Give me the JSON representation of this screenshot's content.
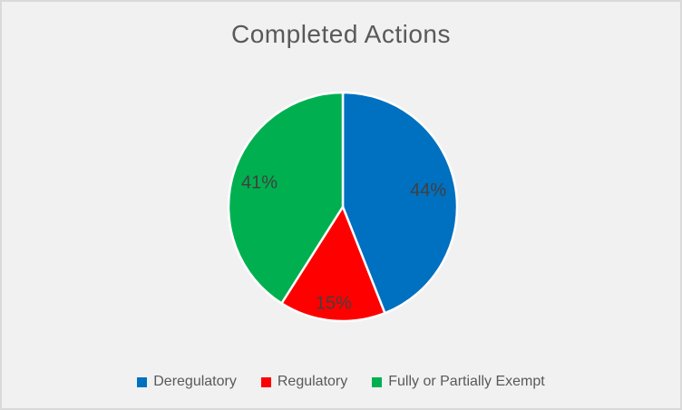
{
  "window": {
    "background_color": "#F1F1F1",
    "frame_color": "#D9D9D9"
  },
  "chart_data": {
    "type": "pie",
    "title": "Completed Actions",
    "categories": [
      "Deregulatory",
      "Regulatory",
      "Fully or Partially Exempt"
    ],
    "values": [
      44,
      15,
      41
    ],
    "data_labels": [
      "44%",
      "15%",
      "41%"
    ],
    "colors": [
      "#0070C0",
      "#FF0000",
      "#00B050"
    ],
    "slice_border_color": "#FFFFFF",
    "title_color": "#595959",
    "data_label_color": "#404040",
    "legend_text_color": "#595959",
    "start_angle_deg": 0,
    "direction": "clockwise",
    "legend_position": "bottom",
    "grid": "off"
  }
}
